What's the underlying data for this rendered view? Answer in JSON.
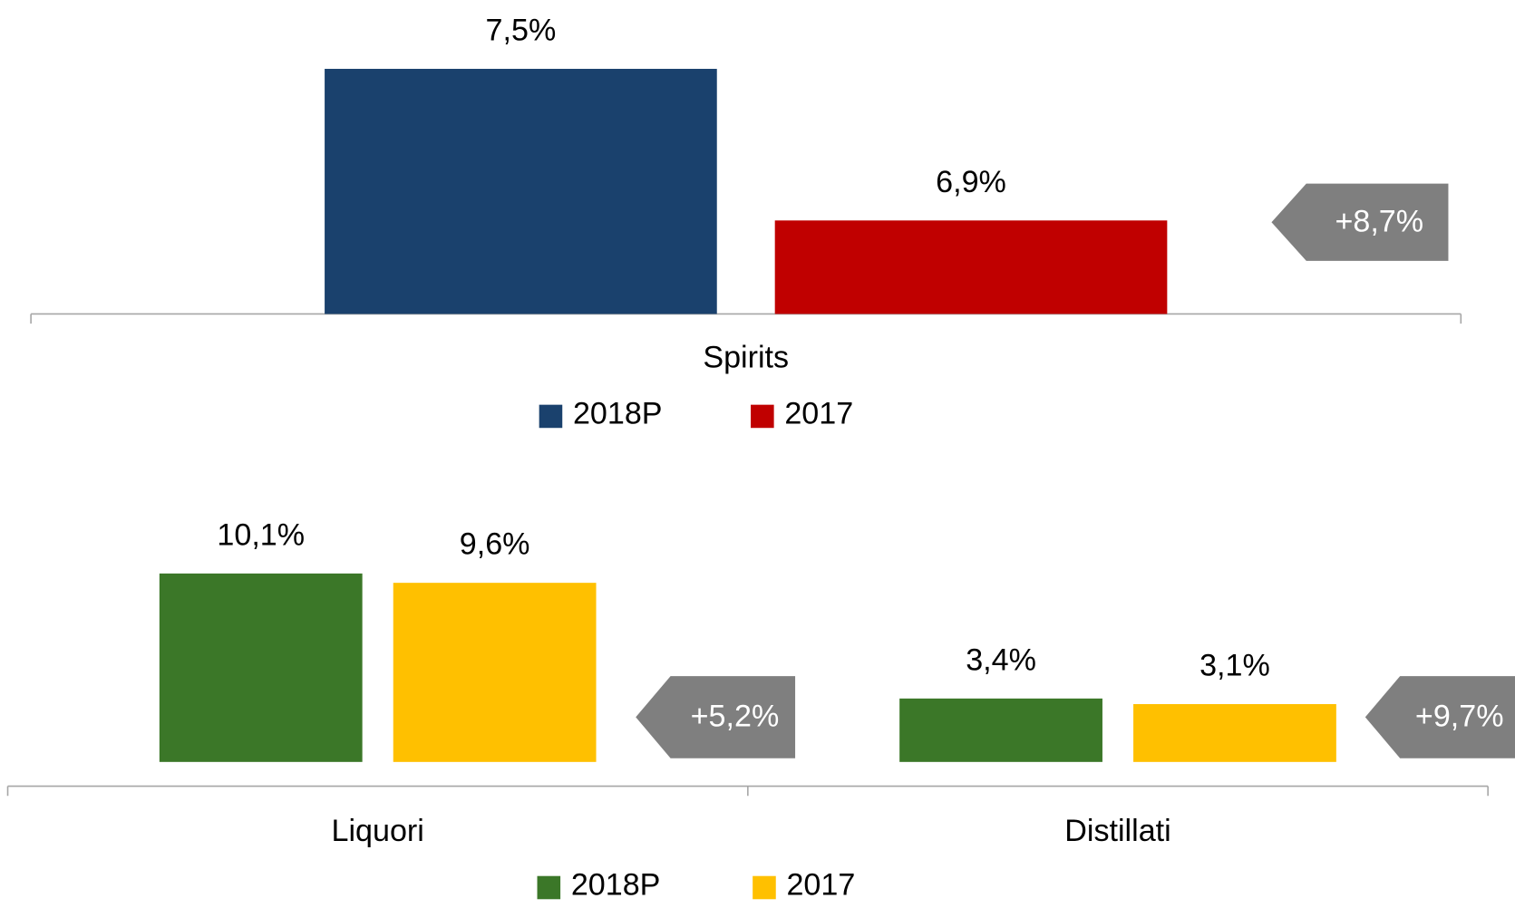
{
  "chart_data": [
    {
      "type": "bar",
      "categories": [
        "Spirits"
      ],
      "series": [
        {
          "name": "2018P",
          "color": "#1a416d",
          "values": [
            7.5
          ],
          "value_labels": [
            "7,5%"
          ]
        },
        {
          "name": "2017",
          "color": "#c00000",
          "values": [
            6.9
          ],
          "value_labels": [
            "6,9%"
          ]
        }
      ],
      "ylim": [
        6.53,
        7.6
      ],
      "annotations": [
        "+8,7%"
      ],
      "annotation_color": "#7f7f7f"
    },
    {
      "type": "bar",
      "categories": [
        "Liquori",
        "Distillati"
      ],
      "series": [
        {
          "name": "2018P",
          "color": "#3b7728",
          "values": [
            10.1,
            3.4
          ],
          "value_labels": [
            "10,1%",
            "3,4%"
          ]
        },
        {
          "name": "2017",
          "color": "#ffc000",
          "values": [
            9.6,
            3.1
          ],
          "value_labels": [
            "9,6%",
            "3,1%"
          ]
        }
      ],
      "ylim": [
        -1.3,
        10.5
      ],
      "annotations": [
        "+5,2%",
        "+9,7%"
      ],
      "annotation_color": "#7f7f7f"
    }
  ]
}
